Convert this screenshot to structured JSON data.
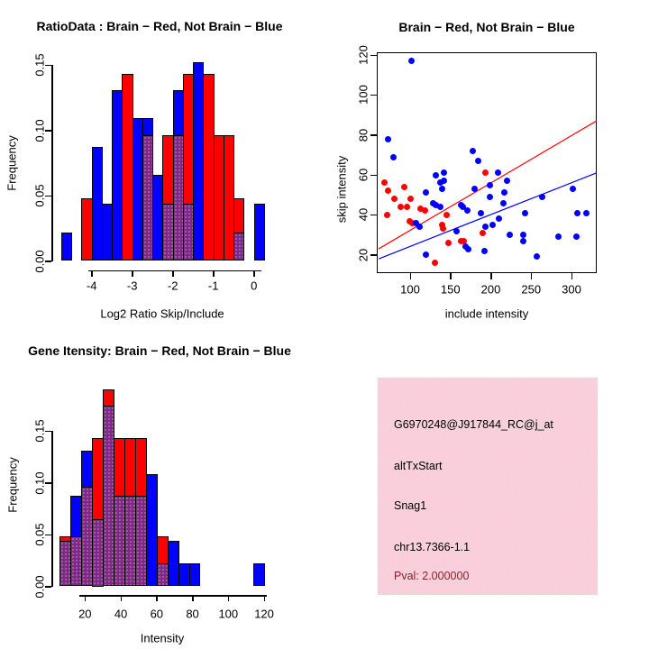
{
  "colors": {
    "brain": "#ff0000",
    "not_brain": "#0000ff",
    "overlap": "#7b2b85",
    "info_box_bg": "#f3cad4",
    "pval_text": "#8e1f2f",
    "axis": "#000000"
  },
  "chart_data": [
    {
      "type": "bar",
      "subtype": "overlaid-histogram",
      "title": "RatioData : Brain − Red, Not Brain − Blue",
      "xlabel": "Log2 Ratio Skip/Include",
      "ylabel": "Frequency",
      "bin_start": -4.75,
      "bin_width": 0.25,
      "x_ticks": [
        "-4",
        "-3",
        "-2",
        "-1",
        "0"
      ],
      "y_ticks": [
        "0.00",
        "0.05",
        "0.10",
        "0.15"
      ],
      "y_tick_values": [
        0,
        0.05,
        0.1,
        0.15
      ],
      "x_tick_values": [
        -4,
        -3,
        -2,
        -1,
        0
      ],
      "ylim": [
        0,
        0.155
      ],
      "grid": false,
      "series": [
        {
          "name": "Not Brain (blue)",
          "color": "#0000ff",
          "values": [
            0.022,
            0,
            0,
            0.087,
            0.044,
            0.131,
            0,
            0.109,
            0.109,
            0.066,
            0.044,
            0.131,
            0.044,
            0.152,
            0,
            0,
            0,
            0.022,
            0,
            0.044
          ]
        },
        {
          "name": "Brain (red)",
          "color": "#ff0000",
          "values": [
            0,
            0,
            0.048,
            0,
            0,
            0,
            0.143,
            0,
            0.096,
            0,
            0.096,
            0.096,
            0.143,
            0,
            0.143,
            0.096,
            0.096,
            0.048,
            0,
            0
          ]
        }
      ]
    },
    {
      "type": "scatter",
      "title": "Brain − Red, Not Brain − Blue",
      "xlabel": "include intensity",
      "ylabel": "skip intensity",
      "x_ticks": [
        "100",
        "150",
        "200",
        "250",
        "300"
      ],
      "y_ticks": [
        "20",
        "40",
        "60",
        "80",
        "100",
        "120"
      ],
      "x_tick_values": [
        100,
        150,
        200,
        250,
        300
      ],
      "y_tick_values": [
        20,
        40,
        60,
        80,
        100,
        120
      ],
      "xlim": [
        61,
        331
      ],
      "ylim": [
        10,
        122
      ],
      "grid": false,
      "series": [
        {
          "name": "Brain (red)",
          "color": "#ff0000",
          "points": [
            [
              68,
              56
            ],
            [
              73,
              52
            ],
            [
              71,
              40
            ],
            [
              81,
              48
            ],
            [
              88,
              44
            ],
            [
              93,
              54
            ],
            [
              96,
              44
            ],
            [
              101,
              48
            ],
            [
              99,
              37
            ],
            [
              103,
              36
            ],
            [
              113,
              43
            ],
            [
              118,
              42
            ],
            [
              145,
              40
            ],
            [
              140,
              35
            ],
            [
              141,
              33
            ],
            [
              147,
              26
            ],
            [
              163,
              27
            ],
            [
              167,
              27
            ],
            [
              131,
              16
            ],
            [
              193,
              61
            ],
            [
              190,
              31
            ]
          ]
        },
        {
          "name": "Not Brain (blue)",
          "color": "#0000ff",
          "points": [
            [
              102,
              117
            ],
            [
              73,
              78
            ],
            [
              79,
              69
            ],
            [
              178,
              72
            ],
            [
              184,
              67
            ],
            [
              142,
              61
            ],
            [
              142,
              57
            ],
            [
              132,
              60
            ],
            [
              137,
              56
            ],
            [
              140,
              53
            ],
            [
              119,
              51
            ],
            [
              129,
              46
            ],
            [
              132,
              45
            ],
            [
              137,
              44
            ],
            [
              165,
              44
            ],
            [
              171,
              42
            ],
            [
              180,
              53
            ],
            [
              163,
              45
            ],
            [
              188,
              41
            ],
            [
              199,
              55
            ],
            [
              209,
              61
            ],
            [
              220,
              57
            ],
            [
              217,
              51
            ],
            [
              216,
              46
            ],
            [
              199,
              49
            ],
            [
              264,
              49
            ],
            [
              302,
              53
            ],
            [
              242,
              41
            ],
            [
              307,
              41
            ],
            [
              318,
              41
            ],
            [
              210,
              38
            ],
            [
              202,
              35
            ],
            [
              193,
              34
            ],
            [
              223,
              30
            ],
            [
              240,
              30
            ],
            [
              240,
              27
            ],
            [
              284,
              29
            ],
            [
              306,
              29
            ],
            [
              192,
              22
            ],
            [
              257,
              19
            ],
            [
              119,
              20
            ],
            [
              169,
              24
            ],
            [
              172,
              23
            ],
            [
              157,
              32
            ],
            [
              107,
              36
            ],
            [
              112,
              34
            ]
          ]
        }
      ],
      "fit_lines": [
        {
          "name": "brain-fit",
          "color": "#ff0000",
          "from": [
            61,
            23
          ],
          "to": [
            331,
            87
          ]
        },
        {
          "name": "not-brain-fit",
          "color": "#0000ff",
          "from": [
            61,
            18
          ],
          "to": [
            331,
            61
          ]
        }
      ]
    },
    {
      "type": "bar",
      "subtype": "overlaid-histogram",
      "title": "Gene Itensity: Brain − Red, Not Brain − Blue",
      "xlabel": "Intensity",
      "ylabel": "Frequency",
      "bin_start": 6,
      "bin_width": 6,
      "x_ticks": [
        "20",
        "40",
        "60",
        "80",
        "100",
        "120"
      ],
      "y_ticks": [
        "0.00",
        "0.05",
        "0.10",
        "0.15"
      ],
      "y_tick_values": [
        0,
        0.05,
        0.1,
        0.15
      ],
      "x_tick_values": [
        20,
        40,
        60,
        80,
        100,
        120
      ],
      "ylim": [
        0,
        0.19
      ],
      "grid": false,
      "series": [
        {
          "name": "Not Brain (blue)",
          "color": "#0000ff",
          "values": [
            0.044,
            0.087,
            0.131,
            0.065,
            0.174,
            0.087,
            0.087,
            0.087,
            0.108,
            0.022,
            0.044,
            0.022,
            0.022,
            0,
            0,
            0,
            0,
            0,
            0.022
          ]
        },
        {
          "name": "Brain (red)",
          "color": "#ff0000",
          "values": [
            0.048,
            0.048,
            0.096,
            0.143,
            0.19,
            0.143,
            0.143,
            0.143,
            0,
            0.048,
            0,
            0,
            0,
            0,
            0,
            0,
            0,
            0,
            0
          ]
        }
      ]
    },
    {
      "type": "info",
      "lines": [
        "G6970248@J917844_RC@j_at",
        "altTxStart",
        "Snag1",
        "chr13.7366-1.1"
      ],
      "pval": "Pval: 2.000000"
    }
  ]
}
